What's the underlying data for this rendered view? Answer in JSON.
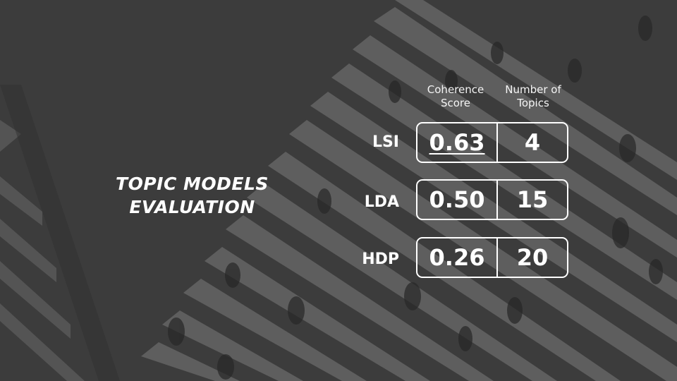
{
  "title": {
    "line1": "TOPIC MODELS",
    "line2": "EVALUATION"
  },
  "headers": {
    "coherence": "Coherence Score",
    "topics": "Number of Topics"
  },
  "rows": [
    {
      "model": "LSI",
      "coherence": "0.63",
      "topics": "4"
    },
    {
      "model": "LDA",
      "coherence": "0.50",
      "topics": "15"
    },
    {
      "model": "HDP",
      "coherence": "0.26",
      "topics": "20"
    }
  ]
}
